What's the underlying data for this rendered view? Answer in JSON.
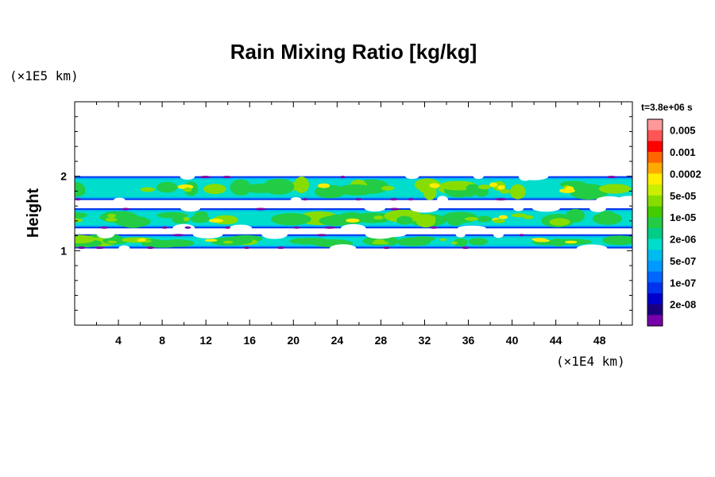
{
  "chart_data": {
    "type": "heatmap",
    "title": "Rain Mixing Ratio [kg/kg]",
    "ylabel": "Height",
    "y_unit_label": "(×1E5 km)",
    "x_unit_label": "(×1E4 km)",
    "time_label": "t=3.8e+06 s",
    "xlim": [
      0,
      51
    ],
    "ylim": [
      0,
      3
    ],
    "x_ticks": [
      4,
      8,
      12,
      16,
      20,
      24,
      28,
      32,
      36,
      40,
      44,
      48
    ],
    "x_tick_labels": [
      "4",
      "8",
      "12",
      "16",
      "20",
      "24",
      "28",
      "32",
      "36",
      "40",
      "44",
      "48"
    ],
    "y_ticks": [
      1,
      2
    ],
    "y_tick_labels": [
      "1",
      "2"
    ],
    "colorbar": {
      "labels": [
        "0.005",
        "0.001",
        "0.0002",
        "5e-05",
        "1e-05",
        "2e-06",
        "5e-07",
        "1e-07",
        "2e-08"
      ],
      "colors": [
        "#ff9999",
        "#ff5555",
        "#ff0000",
        "#ff6600",
        "#ffaa00",
        "#ffee00",
        "#ccee00",
        "#88dd00",
        "#44cc00",
        "#22cc44",
        "#00cc88",
        "#00ddcc",
        "#00bbee",
        "#0099ff",
        "#0066ff",
        "#0033ee",
        "#0000cc",
        "#1a0080",
        "#7700aa"
      ]
    },
    "bands": [
      {
        "name": "upper",
        "y_bottom": 1.68,
        "y_top": 2.0,
        "level": "5e-05"
      },
      {
        "name": "middle",
        "y_bottom": 1.3,
        "y_top": 1.57,
        "level": "1e-05"
      },
      {
        "name": "lower",
        "y_bottom": 1.03,
        "y_top": 1.22,
        "level": "5e-05"
      }
    ]
  }
}
